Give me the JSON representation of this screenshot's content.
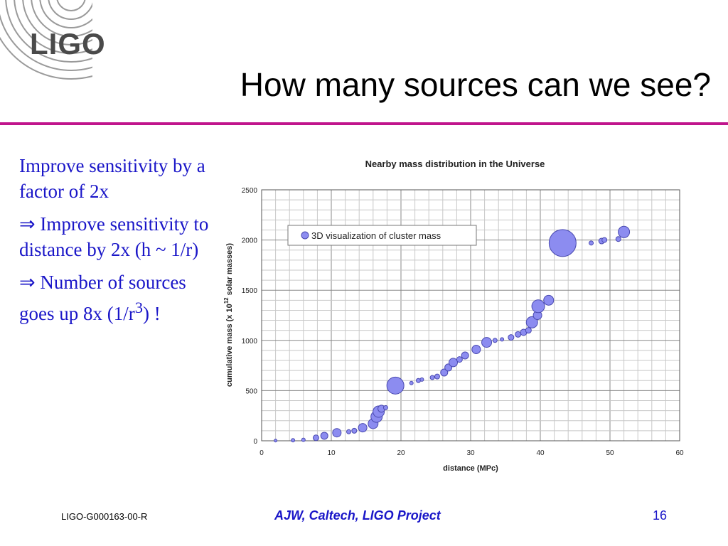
{
  "header": {
    "logo_text": "LIGO",
    "title": "How many sources can we see?"
  },
  "bullets": {
    "b1": "Improve sensitivity by a factor of 2x",
    "b2_arrow": "⇒",
    "b2_text": "Improve sensitivity to distance by 2x (h ~ 1/r)",
    "b3_arrow": "⇒",
    "b3_text": "Number of sources goes up 8x (1/r",
    "b3_sup": "3",
    "b3_end": ") !"
  },
  "footer": {
    "doc_id": "LIGO-G000163-00-R",
    "center": "AJW, Caltech, LIGO Project",
    "page": "16"
  },
  "colors": {
    "accent_rule": "#c0158c",
    "text_blue": "#1a16c8",
    "bubble_fill": "#8c8cf0",
    "bubble_stroke": "#4a4ab0"
  },
  "chart_data": {
    "type": "scatter",
    "title": "Nearby mass distribution in the Universe",
    "xlabel": "distance (MPc)",
    "ylabel_main": "cumulative mass (x 10",
    "ylabel_exp": "12",
    "ylabel_end": " solar masses)",
    "xlim": [
      0,
      60
    ],
    "ylim": [
      0,
      2500
    ],
    "xticks": [
      0,
      10,
      20,
      30,
      40,
      50,
      60
    ],
    "yticks": [
      0,
      500,
      1000,
      1500,
      2000,
      2500
    ],
    "grid": true,
    "legend_label": "3D visualization of cluster mass",
    "legend_position": "top-left",
    "series": [
      {
        "name": "3D visualization of cluster mass",
        "points": [
          {
            "x": 2,
            "y": 2,
            "s": 2
          },
          {
            "x": 4.5,
            "y": 5,
            "s": 2.5
          },
          {
            "x": 6,
            "y": 10,
            "s": 2.5
          },
          {
            "x": 7.8,
            "y": 30,
            "s": 4
          },
          {
            "x": 9,
            "y": 50,
            "s": 5
          },
          {
            "x": 10.8,
            "y": 80,
            "s": 6
          },
          {
            "x": 12.5,
            "y": 90,
            "s": 3
          },
          {
            "x": 13.3,
            "y": 100,
            "s": 3.5
          },
          {
            "x": 14.5,
            "y": 130,
            "s": 6
          },
          {
            "x": 16,
            "y": 170,
            "s": 7
          },
          {
            "x": 16.5,
            "y": 240,
            "s": 8
          },
          {
            "x": 16.8,
            "y": 290,
            "s": 8
          },
          {
            "x": 17.2,
            "y": 320,
            "s": 5
          },
          {
            "x": 17.8,
            "y": 330,
            "s": 3
          },
          {
            "x": 19.2,
            "y": 550,
            "s": 12
          },
          {
            "x": 21.5,
            "y": 575,
            "s": 2.5
          },
          {
            "x": 22.5,
            "y": 600,
            "s": 3
          },
          {
            "x": 23,
            "y": 610,
            "s": 2.5
          },
          {
            "x": 24.5,
            "y": 630,
            "s": 3
          },
          {
            "x": 25.2,
            "y": 640,
            "s": 3.5
          },
          {
            "x": 26.2,
            "y": 680,
            "s": 5
          },
          {
            "x": 26.8,
            "y": 730,
            "s": 5
          },
          {
            "x": 27.5,
            "y": 780,
            "s": 6
          },
          {
            "x": 28.4,
            "y": 810,
            "s": 4
          },
          {
            "x": 29.2,
            "y": 850,
            "s": 5
          },
          {
            "x": 30.8,
            "y": 910,
            "s": 6
          },
          {
            "x": 32.3,
            "y": 980,
            "s": 7
          },
          {
            "x": 33.5,
            "y": 1000,
            "s": 3
          },
          {
            "x": 34.5,
            "y": 1010,
            "s": 2.5
          },
          {
            "x": 35.8,
            "y": 1030,
            "s": 4
          },
          {
            "x": 36.8,
            "y": 1060,
            "s": 4
          },
          {
            "x": 37.6,
            "y": 1080,
            "s": 4.5
          },
          {
            "x": 38.3,
            "y": 1100,
            "s": 4
          },
          {
            "x": 38.8,
            "y": 1180,
            "s": 8
          },
          {
            "x": 39.6,
            "y": 1250,
            "s": 6
          },
          {
            "x": 39.7,
            "y": 1340,
            "s": 9
          },
          {
            "x": 41.2,
            "y": 1400,
            "s": 7
          },
          {
            "x": 43.2,
            "y": 1970,
            "s": 19
          },
          {
            "x": 47.3,
            "y": 1970,
            "s": 3
          },
          {
            "x": 48.8,
            "y": 1990,
            "s": 4
          },
          {
            "x": 49.2,
            "y": 2000,
            "s": 3.5
          },
          {
            "x": 51.2,
            "y": 2010,
            "s": 3.5
          },
          {
            "x": 52,
            "y": 2080,
            "s": 8
          }
        ]
      }
    ]
  }
}
